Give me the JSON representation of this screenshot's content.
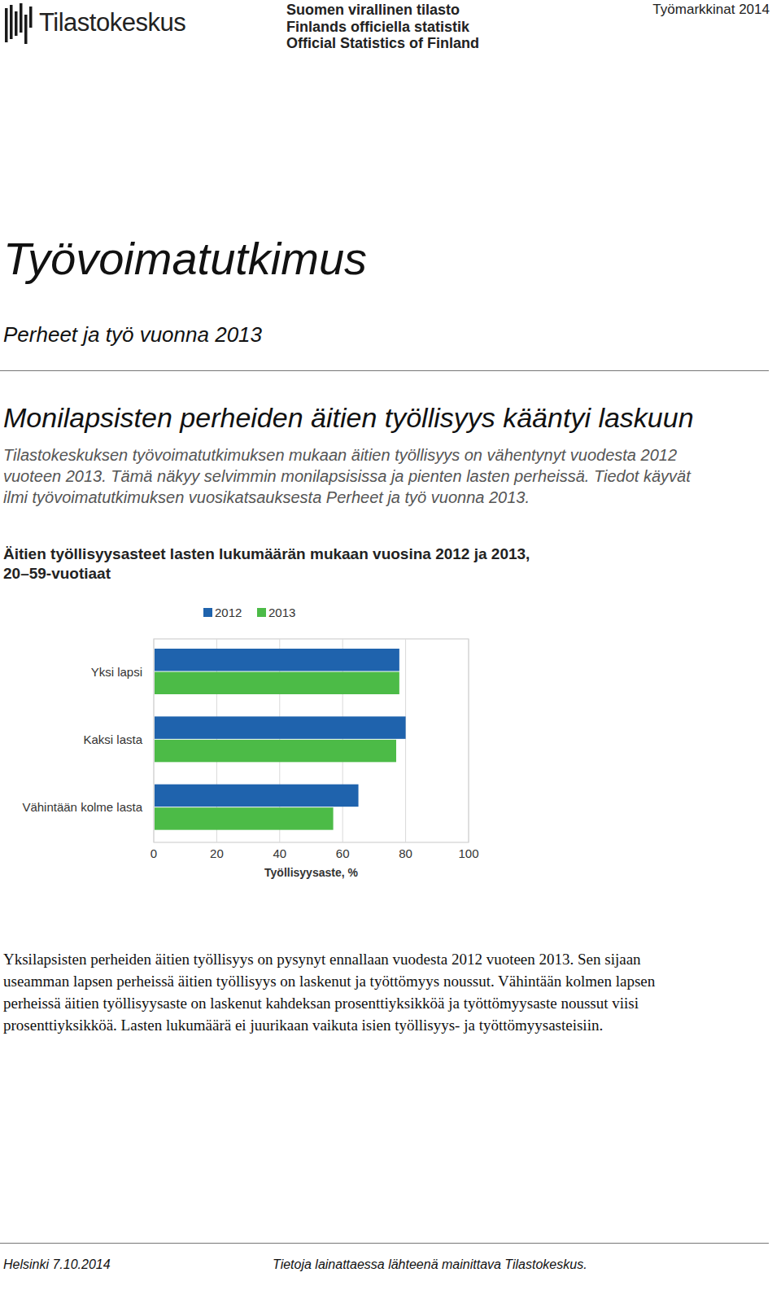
{
  "header": {
    "logo": "Tilastokeskus",
    "official": [
      "Suomen virallinen tilasto",
      "Finlands officiella statistik",
      "Official Statistics of Finland"
    ],
    "topic": "Työmarkkinat 2014"
  },
  "title": "Työvoimatutkimus",
  "subtitle": "Perheet ja työ vuonna 2013",
  "headline": "Monilapsisten perheiden äitien työllisyys kääntyi laskuun",
  "intro": [
    "Tilastokeskuksen työvoimatutkimuksen mukaan äitien työllisyys on vähentynyt vuodesta 2012",
    "vuoteen 2013. Tämä näkyy selvimmin monilapsisissa ja pienten lasten perheissä. Tiedot käyvät",
    "ilmi työvoimatutkimuksen vuosikatsauksesta Perheet ja työ vuonna 2013."
  ],
  "chart_data": {
    "type": "bar",
    "orientation": "horizontal",
    "title": "Äitien työllisyysasteet lasten lukumäärän mukaan vuosina 2012 ja 2013, 20–59-vuotiaat",
    "categories": [
      "Yksi lapsi",
      "Kaksi lasta",
      "Vähintään kolme lasta"
    ],
    "series": [
      {
        "name": "2012",
        "color": "#1f63ad",
        "values": [
          78,
          80,
          65
        ]
      },
      {
        "name": "2013",
        "color": "#4cbb47",
        "values": [
          78,
          77,
          57
        ]
      }
    ],
    "xlim": [
      0,
      100
    ],
    "xticks": [
      0,
      20,
      40,
      60,
      80,
      100
    ],
    "x_label": "Työllisyysaste, %",
    "grid": true,
    "legend": "top"
  },
  "body": [
    "Yksilapsisten perheiden äitien työllisyys on pysynyt ennallaan vuodesta 2012 vuoteen 2013. Sen sijaan",
    "useamman lapsen perheissä äitien työllisyys on laskenut ja työttömyys noussut. Vähintään kolmen lapsen",
    "perheissä äitien työllisyysaste on laskenut kahdeksan prosenttiyksikköä ja työttömyysaste noussut viisi",
    "prosenttiyksikköä. Lasten lukumäärä ei juurikaan vaikuta isien työllisyys- ja työttömyysasteisiin."
  ],
  "footer": {
    "place_date": "Helsinki 7.10.2014",
    "note": "Tietoja lainattaessa lähteenä mainittava Tilastokeskus."
  }
}
